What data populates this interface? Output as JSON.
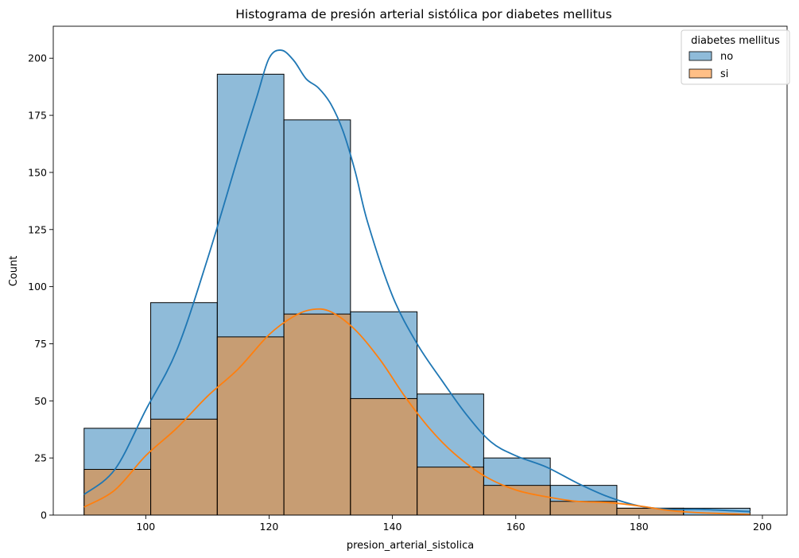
{
  "chart_data": {
    "type": "bar",
    "title": "Histograma de presión arterial sistólica por diabetes mellitus",
    "xlabel": "presion_arterial_sistolica",
    "ylabel": "Count",
    "xlim": [
      85,
      204
    ],
    "ylim": [
      0,
      214
    ],
    "x_ticks": [
      "100",
      "120",
      "140",
      "160",
      "180",
      "200"
    ],
    "y_ticks": [
      "0",
      "25",
      "50",
      "75",
      "100",
      "125",
      "150",
      "175",
      "200"
    ],
    "bin_edges": [
      90,
      100.8,
      111.6,
      122.4,
      133.2,
      144,
      154.8,
      165.6,
      176.4,
      187.2,
      198
    ],
    "legend": {
      "title": "diabetes mellitus",
      "placement": "top-right"
    },
    "grid": false,
    "series": [
      {
        "name": "no",
        "color": "#1f77b4",
        "values": [
          38,
          93,
          193,
          173,
          89,
          53,
          25,
          13,
          3,
          3
        ],
        "kde": [
          [
            90,
            9
          ],
          [
            95,
            20
          ],
          [
            100,
            46
          ],
          [
            105,
            72
          ],
          [
            110,
            112
          ],
          [
            115,
            157
          ],
          [
            118,
            183
          ],
          [
            120,
            200
          ],
          [
            122,
            203.5
          ],
          [
            124,
            199
          ],
          [
            126,
            191
          ],
          [
            128,
            187
          ],
          [
            130,
            180
          ],
          [
            132,
            168
          ],
          [
            134,
            150
          ],
          [
            136,
            128
          ],
          [
            140,
            96
          ],
          [
            144,
            75
          ],
          [
            148,
            59
          ],
          [
            152,
            44
          ],
          [
            156,
            32
          ],
          [
            160,
            26
          ],
          [
            165,
            21
          ],
          [
            170,
            14
          ],
          [
            175,
            8
          ],
          [
            180,
            4
          ],
          [
            185,
            2.5
          ],
          [
            190,
            2.5
          ],
          [
            198,
            1.5
          ]
        ]
      },
      {
        "name": "si",
        "color": "#ff7f0e",
        "values": [
          20,
          42,
          78,
          88,
          51,
          21,
          13,
          6,
          3,
          0
        ],
        "kde": [
          [
            90,
            3.5
          ],
          [
            95,
            11
          ],
          [
            100,
            26
          ],
          [
            105,
            38
          ],
          [
            110,
            52
          ],
          [
            115,
            64
          ],
          [
            120,
            79
          ],
          [
            124,
            87
          ],
          [
            127,
            90
          ],
          [
            130,
            89
          ],
          [
            134,
            81
          ],
          [
            138,
            68
          ],
          [
            142,
            52
          ],
          [
            146,
            38
          ],
          [
            150,
            27
          ],
          [
            155,
            17
          ],
          [
            160,
            11
          ],
          [
            165,
            8
          ],
          [
            170,
            6
          ],
          [
            175,
            5.5
          ],
          [
            180,
            4
          ],
          [
            185,
            2
          ],
          [
            190,
            1
          ],
          [
            198,
            0.3
          ]
        ]
      }
    ]
  }
}
